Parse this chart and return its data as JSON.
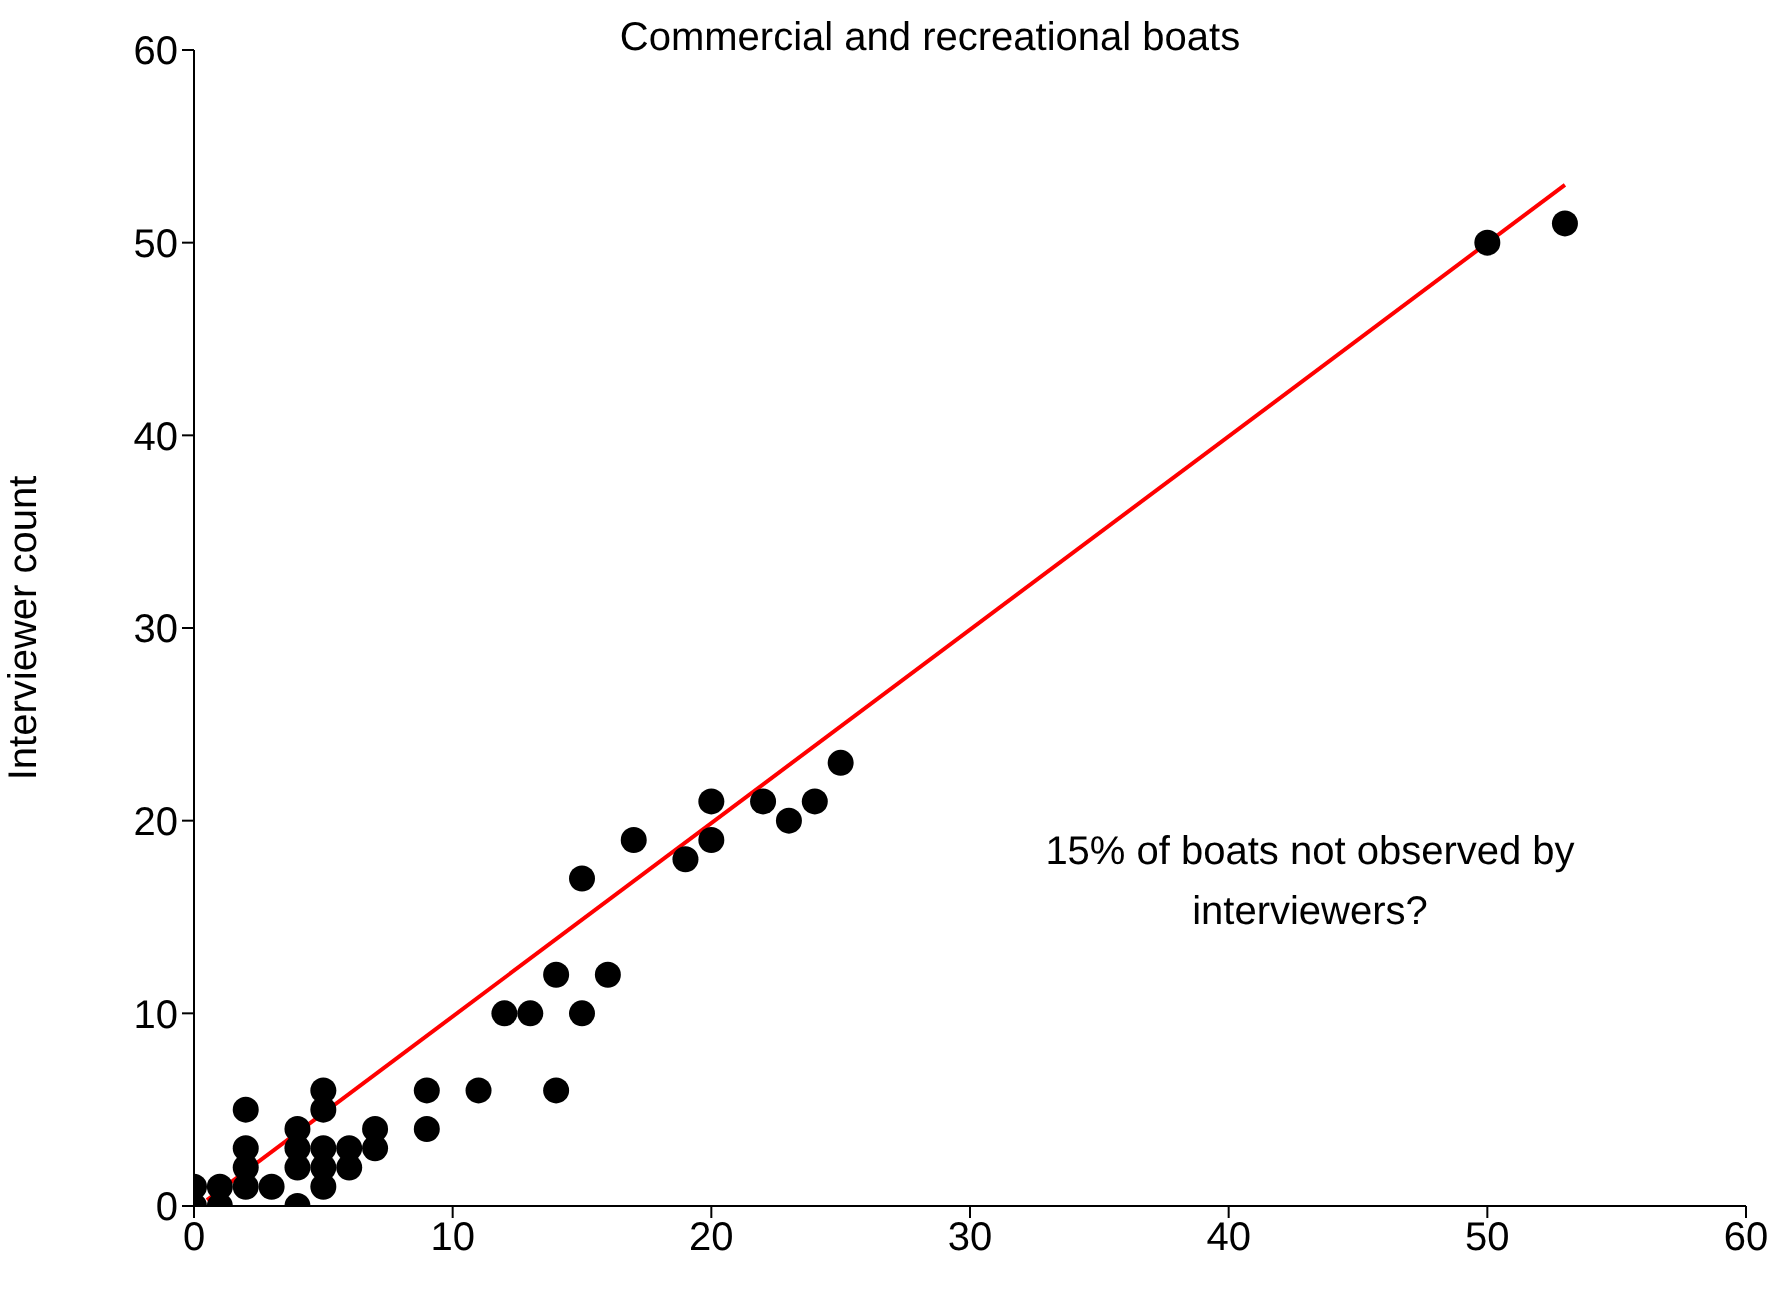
{
  "chart_data": {
    "type": "scatter",
    "title": "Commercial and recreational boats",
    "ylabel": "Interviewer count",
    "annotations": [
      "15% of boats not observed by interviewers?"
    ],
    "xlim": [
      0,
      60
    ],
    "xticks": [
      0,
      10,
      20,
      30,
      40,
      50,
      60
    ],
    "ylim": [
      0,
      60
    ],
    "yticks": [
      0,
      10,
      20,
      30,
      40,
      50,
      60
    ],
    "grid": false,
    "legend": false,
    "series": [
      {
        "color": "#000000",
        "marker": "circle",
        "x": [
          0,
          0,
          1,
          1,
          2,
          2,
          2,
          2,
          3,
          4,
          4,
          4,
          4,
          5,
          5,
          5,
          5,
          5,
          6,
          6,
          7,
          7,
          9,
          9,
          11,
          12,
          13,
          14,
          14,
          15,
          15,
          16,
          17,
          19,
          20,
          20,
          22,
          23,
          24,
          25,
          50,
          53
        ],
        "values": [
          0,
          1,
          0,
          1,
          1,
          2,
          3,
          5,
          1,
          0,
          2,
          3,
          4,
          1,
          2,
          3,
          5,
          6,
          2,
          3,
          3,
          4,
          4,
          6,
          6,
          10,
          10,
          6,
          12,
          10,
          17,
          12,
          19,
          18,
          19,
          21,
          21,
          20,
          21,
          23,
          50,
          51
        ]
      },
      {
        "type": "line",
        "color": "#ff0000",
        "marker": "none",
        "x": [
          0.5,
          53
        ],
        "values": [
          0.3,
          53
        ]
      }
    ]
  }
}
